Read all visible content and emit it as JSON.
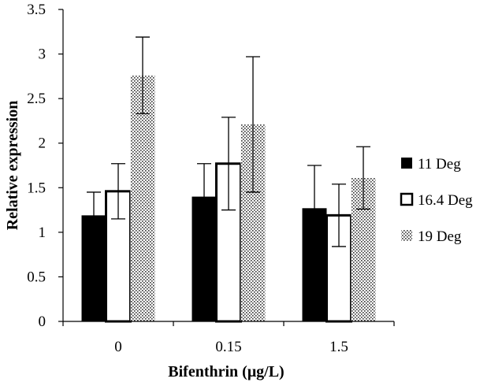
{
  "chart_data": {
    "type": "bar",
    "title": "",
    "xlabel": "Bifenthrin (μg/L)",
    "ylabel": "Relative expression",
    "categories": [
      "0",
      "0.15",
      "1.5"
    ],
    "ylim": [
      0,
      3.5
    ],
    "yticks": [
      "0",
      "0.5",
      "1",
      "1.5",
      "2",
      "2.5",
      "3",
      "3.5"
    ],
    "grid": false,
    "legend_position": "right",
    "series": [
      {
        "name": "11 Deg",
        "fill": "black",
        "color": "#000000",
        "values": [
          1.19,
          1.4,
          1.27
        ],
        "errors": [
          0.26,
          0.37,
          0.48
        ]
      },
      {
        "name": "16.4 Deg",
        "fill": "white",
        "color": "#000000",
        "values": [
          1.46,
          1.77,
          1.19
        ],
        "errors": [
          0.31,
          0.52,
          0.35
        ]
      },
      {
        "name": "19 Deg",
        "fill": "dotted",
        "color": "#000000",
        "values": [
          2.76,
          2.21,
          1.61
        ],
        "errors": [
          0.43,
          0.76,
          0.35
        ]
      }
    ]
  }
}
